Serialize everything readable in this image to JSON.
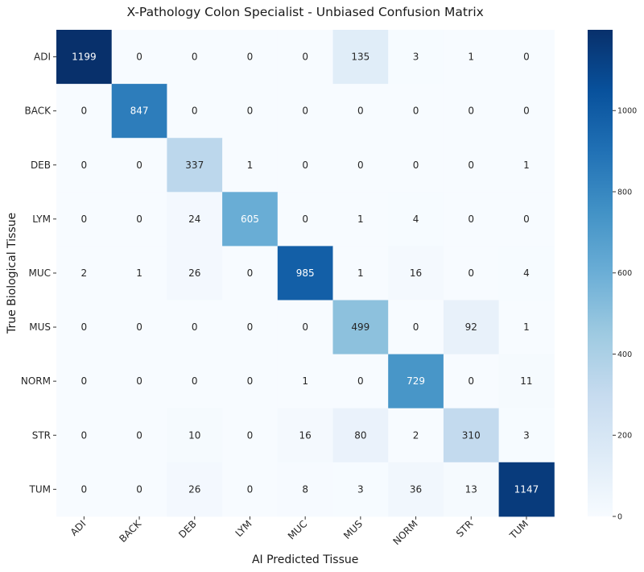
{
  "chart_data": {
    "type": "heatmap",
    "title": "X-Pathology Colon Specialist - Unbiased Confusion Matrix",
    "xlabel": "AI Predicted Tissue",
    "ylabel": "True Biological Tissue",
    "x_categories": [
      "ADI",
      "BACK",
      "DEB",
      "LYM",
      "MUC",
      "MUS",
      "NORM",
      "STR",
      "TUM"
    ],
    "y_categories": [
      "ADI",
      "BACK",
      "DEB",
      "LYM",
      "MUC",
      "MUS",
      "NORM",
      "STR",
      "TUM"
    ],
    "values": [
      [
        1199,
        0,
        0,
        0,
        0,
        135,
        3,
        1,
        0
      ],
      [
        0,
        847,
        0,
        0,
        0,
        0,
        0,
        0,
        0
      ],
      [
        0,
        0,
        337,
        1,
        0,
        0,
        0,
        0,
        1
      ],
      [
        0,
        0,
        24,
        605,
        0,
        1,
        4,
        0,
        0
      ],
      [
        2,
        1,
        26,
        0,
        985,
        1,
        16,
        0,
        4
      ],
      [
        0,
        0,
        0,
        0,
        0,
        499,
        0,
        92,
        1
      ],
      [
        0,
        0,
        0,
        0,
        1,
        0,
        729,
        0,
        11
      ],
      [
        0,
        0,
        10,
        0,
        16,
        80,
        2,
        310,
        3
      ],
      [
        0,
        0,
        26,
        0,
        8,
        3,
        36,
        13,
        1147
      ]
    ],
    "colormap": "Blues",
    "vmin": 0,
    "vmax": 1199,
    "colorbar_ticks": [
      0,
      200,
      400,
      600,
      800,
      1000
    ],
    "grid": false
  }
}
